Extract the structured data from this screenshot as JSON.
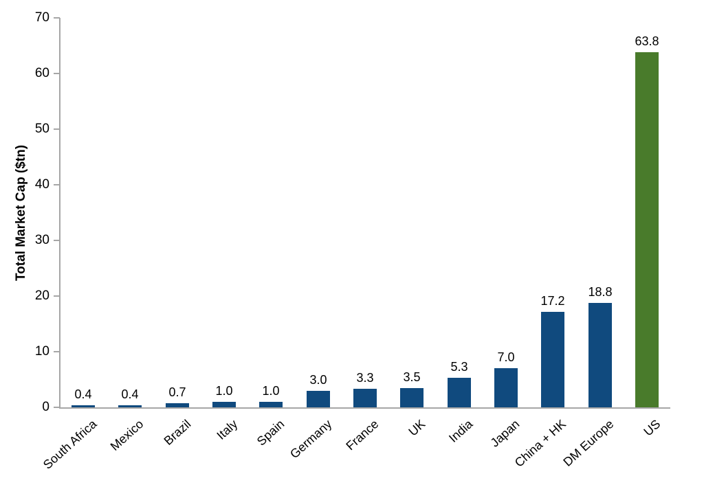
{
  "chart_data": {
    "type": "bar",
    "title": "",
    "ylabel": "Total Market Cap ($tn)",
    "xlabel": "",
    "ylim": [
      0,
      70
    ],
    "yticks": [
      0,
      10,
      20,
      30,
      40,
      50,
      60,
      70
    ],
    "grid": false,
    "legend": "none",
    "categories": [
      "South Africa",
      "Mexico",
      "Brazil",
      "Italy",
      "Spain",
      "Germany",
      "France",
      "UK",
      "India",
      "Japan",
      "China + HK",
      "DM Europe",
      "US"
    ],
    "values": [
      0.4,
      0.4,
      0.7,
      1.0,
      1.0,
      3.0,
      3.3,
      3.5,
      5.3,
      7.0,
      17.2,
      18.8,
      63.8
    ],
    "value_labels": [
      "0.4",
      "0.4",
      "0.7",
      "1.0",
      "1.0",
      "3.0",
      "3.3",
      "3.5",
      "5.3",
      "7.0",
      "17.2",
      "18.8",
      "63.8"
    ],
    "bar_colors": [
      "#104A7E",
      "#104A7E",
      "#104A7E",
      "#104A7E",
      "#104A7E",
      "#104A7E",
      "#104A7E",
      "#104A7E",
      "#104A7E",
      "#104A7E",
      "#104A7E",
      "#104A7E",
      "#497B2B"
    ],
    "highlight": {
      "category": "US",
      "color": "#497B2B"
    }
  },
  "colors": {
    "bar_default": "#104A7E",
    "bar_highlight": "#497B2B",
    "axis": "#A6A6A6",
    "bottom_line": "#D9D9D9",
    "text": "#000000"
  }
}
